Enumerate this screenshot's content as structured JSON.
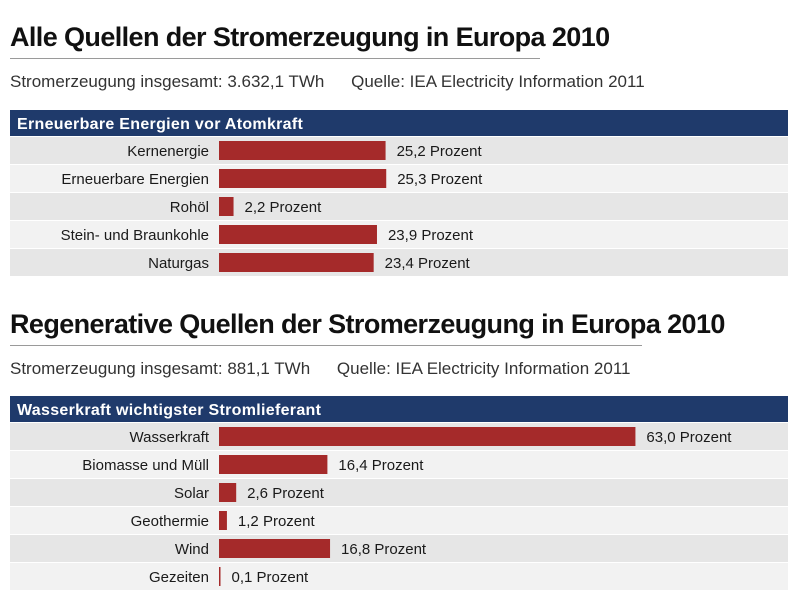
{
  "colors": {
    "header_bg": "#1f3a6b",
    "header_text": "#ffffff",
    "bar": "#a52a2a",
    "row_even": "#e6e6e6",
    "row_odd": "#f2f2f2"
  },
  "section1": {
    "title": "Alle Quellen der Stromerzeugung in Europa 2010",
    "total": "Stromerzeugung insgesamt: 3.632,1 TWh",
    "source": "Quelle: IEA Electricity Information 2011"
  },
  "section2": {
    "title": "Regenerative Quellen der Stromerzeugung in Europa 2010",
    "total": "Stromerzeugung insgesamt: 881,1 TWh",
    "source": "Quelle: IEA Electricity Information 2011"
  },
  "chart_data": [
    {
      "type": "bar",
      "orientation": "horizontal",
      "header": "Erneuerbare Energien vor Atomkraft",
      "categories": [
        "Kernenergie",
        "Erneuerbare Energien",
        "Rohöl",
        "Stein- und Braunkohle",
        "Naturgas"
      ],
      "values": [
        25.2,
        25.3,
        2.2,
        23.9,
        23.4
      ],
      "value_labels": [
        "25,2 Prozent",
        "25,3 Prozent",
        "2,2 Prozent",
        "23,9 Prozent",
        "23,4 Prozent"
      ],
      "unit": "Prozent"
    },
    {
      "type": "bar",
      "orientation": "horizontal",
      "header": "Wasserkraft wichtigster Stromlieferant",
      "categories": [
        "Wasserkraft",
        "Biomasse und Müll",
        "Solar",
        "Geothermie",
        "Wind",
        "Gezeiten"
      ],
      "values": [
        63.0,
        16.4,
        2.6,
        1.2,
        16.8,
        0.1
      ],
      "value_labels": [
        "63,0 Prozent",
        "16,4 Prozent",
        "2,6 Prozent",
        "1,2 Prozent",
        "16,8 Prozent",
        "0,1 Prozent"
      ],
      "unit": "Prozent"
    }
  ]
}
